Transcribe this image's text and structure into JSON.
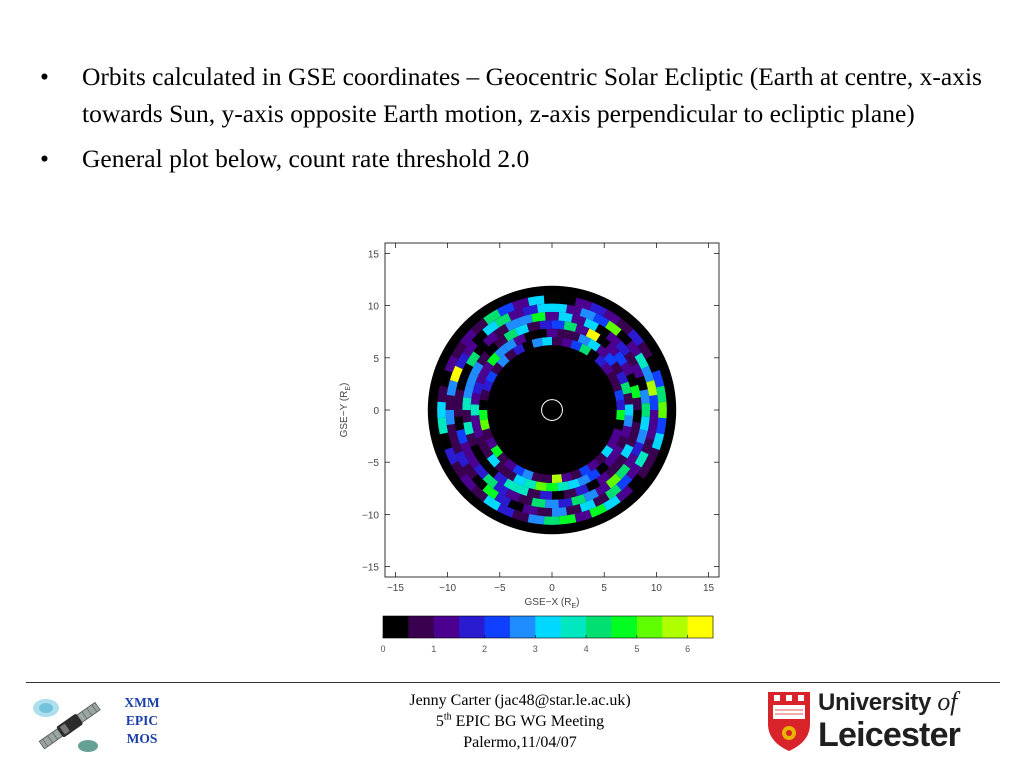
{
  "bullets": [
    "Orbits calculated in GSE coordinates – Geocentric Solar Ecliptic (Earth at centre, x-axis towards Sun, y-axis opposite Earth motion, z-axis perpendicular to ecliptic plane)",
    "General plot below, count rate threshold 2.0"
  ],
  "bullet_symbol": "•",
  "chart_data": {
    "type": "heatmap",
    "subtype": "polar orbit map",
    "xlabel": "GSE−X (R",
    "xlabel_sub": "E",
    "xlabel_close": ")",
    "ylabel": "GSE−Y (R",
    "ylabel_sub": "E",
    "ylabel_close": ")",
    "xlim": [
      -16,
      16
    ],
    "ylim": [
      -16,
      16
    ],
    "xticks": [
      -15,
      -10,
      -5,
      0,
      5,
      10,
      15
    ],
    "yticks": [
      -15,
      -10,
      -5,
      0,
      5,
      10,
      15
    ],
    "xtick_labels": [
      "−15",
      "−10",
      "−5",
      "0",
      "5",
      "10",
      "15"
    ],
    "ytick_labels": [
      "−15",
      "−10",
      "−5",
      "0",
      "5",
      "10",
      "15"
    ],
    "annulus": {
      "inner_radius": 6.2,
      "mid_radius": 11.0,
      "outer_radius": 11.9,
      "earth_radius": 1.0
    },
    "colorbar": {
      "range": [
        0,
        6.5
      ],
      "ticks": [
        0,
        1,
        2,
        3,
        4,
        5,
        6
      ],
      "tick_labels": [
        "0",
        "1",
        "2",
        "3",
        "4",
        "5",
        "6"
      ],
      "colors": [
        "#000000",
        "#3a0050",
        "#4b0090",
        "#2a1bd0",
        "#1040ff",
        "#1f8cff",
        "#00d8ff",
        "#00e8c0",
        "#00e070",
        "#00ff20",
        "#60ff00",
        "#b0ff00",
        "#ffff00"
      ]
    }
  },
  "footer": {
    "logo_lines": [
      "XMM",
      "EPIC",
      "MOS"
    ],
    "author": "Jenny Carter (jac48@star.le.ac.uk)",
    "meeting_num": "5",
    "meeting_sup": "th",
    "meeting_rest": " EPIC BG WG Meeting",
    "place_date": "Palermo,11/04/07",
    "university_prefix": "University ",
    "university_of": "of",
    "university_name": "Leicester"
  },
  "colors": {
    "logo_text": "#1a3fa6",
    "crest_red": "#d8232a",
    "crest_gold": "#e7b400"
  }
}
